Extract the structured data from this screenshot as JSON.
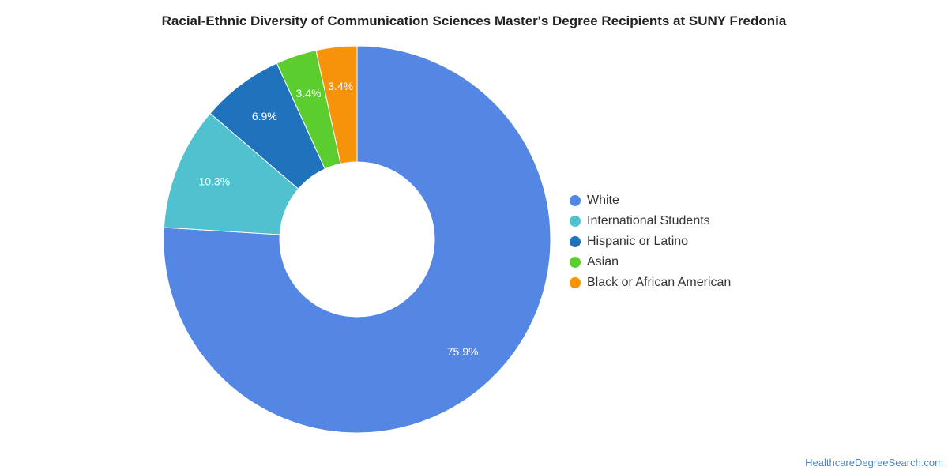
{
  "chart_data": {
    "type": "pie",
    "variant": "donut",
    "title": "Racial-Ethnic Diversity of Communication Sciences Master's Degree Recipients at SUNY Fredonia",
    "slices": [
      {
        "label": "White",
        "value": 75.9,
        "display": "75.9%",
        "color": "#5486e3"
      },
      {
        "label": "International Students",
        "value": 10.3,
        "display": "10.3%",
        "color": "#50c1cf"
      },
      {
        "label": "Hispanic or Latino",
        "value": 6.9,
        "display": "6.9%",
        "color": "#1f73bd"
      },
      {
        "label": "Asian",
        "value": 3.4,
        "display": "3.4%",
        "color": "#5ccd2f"
      },
      {
        "label": "Black or African American",
        "value": 3.4,
        "display": "3.4%",
        "color": "#f7930a"
      }
    ],
    "legend_position": "right"
  },
  "footer": {
    "source": "HealthcareDegreeSearch.com"
  }
}
